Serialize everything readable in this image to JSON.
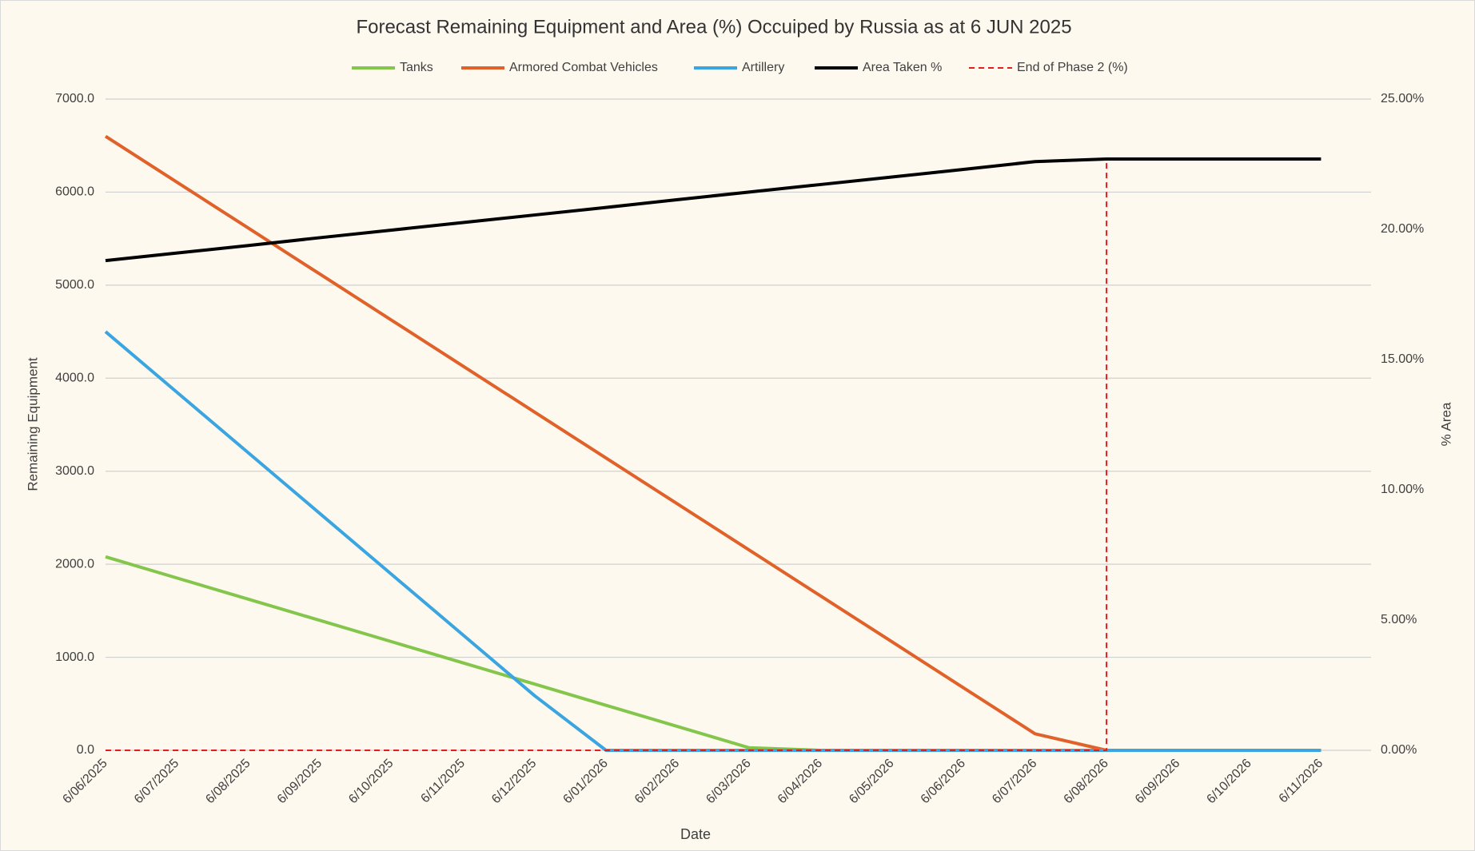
{
  "chart_data": {
    "type": "line",
    "title": "Forecast Remaining Equipment and Area (%) Occuiped by Russia as at 6 JUN 2025",
    "x_label": "Date",
    "y_label": "Remaining Equipment",
    "y2_label": "% Area",
    "x": [
      "6/06/2025",
      "6/07/2025",
      "6/08/2025",
      "6/09/2025",
      "6/10/2025",
      "6/11/2025",
      "6/12/2025",
      "6/01/2026",
      "6/02/2026",
      "6/03/2026",
      "6/04/2026",
      "6/05/2026",
      "6/06/2026",
      "6/07/2026",
      "6/08/2026",
      "6/09/2026",
      "6/10/2026",
      "6/11/2026"
    ],
    "series": [
      {
        "name": "Tanks",
        "color": "#84c54c",
        "values": [
          2080,
          1852,
          1624,
          1396,
          1168,
          940,
          712,
          484,
          256,
          28,
          0,
          0,
          0,
          0,
          0,
          0,
          0,
          0
        ]
      },
      {
        "name": "Armored Combat Vehicles",
        "color": "#e0622a",
        "values": [
          6600,
          6106,
          5612,
          5118,
          4624,
          4130,
          3636,
          3142,
          2648,
          2154,
          1660,
          1166,
          672,
          178,
          0,
          0,
          0,
          0
        ]
      },
      {
        "name": "Artillery",
        "color": "#3aa5e0",
        "values": [
          4500,
          3848,
          3196,
          2544,
          1892,
          1240,
          588,
          0,
          0,
          0,
          0,
          0,
          0,
          0,
          0,
          0,
          0,
          0
        ]
      },
      {
        "name": "Area Taken %",
        "color": "#000000",
        "axis": "y2",
        "values": [
          18.8,
          19.09,
          19.38,
          19.68,
          19.97,
          20.26,
          20.55,
          20.84,
          21.14,
          21.43,
          21.72,
          22.01,
          22.3,
          22.6,
          22.7,
          22.7,
          22.7,
          22.7
        ]
      },
      {
        "name": "End of Phase 2 (%)",
        "color": "#e02020",
        "axis": "y2",
        "dashed": true,
        "step": true,
        "values": [
          0,
          0,
          0,
          0,
          0,
          0,
          0,
          0,
          0,
          0,
          0,
          0,
          0,
          0,
          22.7,
          null,
          null,
          null
        ]
      }
    ],
    "ylim": [
      0,
      7000
    ],
    "yticks": [
      {
        "value": 0,
        "label": "0.0"
      },
      {
        "value": 1000,
        "label": "1000.0"
      },
      {
        "value": 2000,
        "label": "2000.0"
      },
      {
        "value": 3000,
        "label": "3000.0"
      },
      {
        "value": 4000,
        "label": "4000.0"
      },
      {
        "value": 5000,
        "label": "5000.0"
      },
      {
        "value": 6000,
        "label": "6000.0"
      },
      {
        "value": 7000,
        "label": "7000.0"
      }
    ],
    "y2lim": [
      0,
      25
    ],
    "y2ticks": [
      {
        "value": 0,
        "label": "0.00%"
      },
      {
        "value": 5,
        "label": "5.00%"
      },
      {
        "value": 10,
        "label": "10.00%"
      },
      {
        "value": 15,
        "label": "15.00%"
      },
      {
        "value": 20,
        "label": "20.00%"
      },
      {
        "value": 25,
        "label": "25.00%"
      }
    ],
    "grid": true,
    "legend": "top"
  }
}
